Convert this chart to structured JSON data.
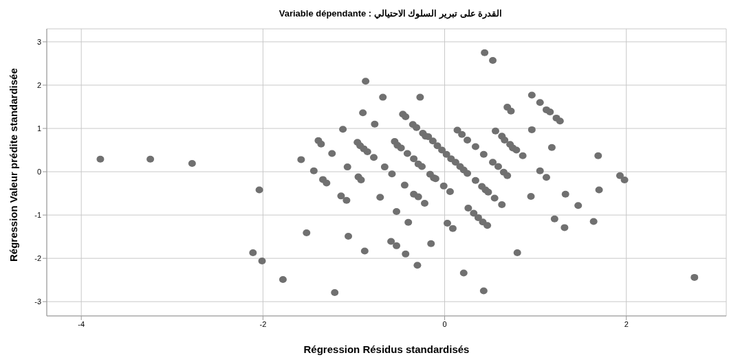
{
  "chart_data": {
    "type": "scatter",
    "title": "Variable dépendante : القدرة على تبرير السلوك الاحتيالي",
    "xlabel": "Régression Résidus standardisés",
    "ylabel": "Régression Valeur prédite standardisée",
    "series": [
      {
        "color": "#707070",
        "x": [
          -3.79,
          -3.24,
          -2.78,
          -2.04,
          -2.11,
          -2.01,
          -0.87,
          -0.68,
          -0.27,
          -0.9,
          -0.46,
          -0.43,
          -0.77,
          -0.35,
          -0.31,
          -1.12,
          -0.24,
          -0.21,
          -1.39,
          -1.36,
          -0.96,
          -0.93,
          -0.89,
          -0.85,
          -0.55,
          -0.52,
          -0.48,
          -1.24,
          -0.41,
          -0.78,
          -0.34,
          -0.29,
          -0.25,
          -1.58,
          -1.07,
          -0.66,
          -1.44,
          -0.58,
          -0.16,
          -0.12,
          -0.1,
          -1.34,
          -1.3,
          -0.95,
          -0.92,
          -0.44,
          -1.14,
          -1.08,
          -0.71,
          -0.34,
          -0.29,
          -0.22,
          -0.53,
          -0.4,
          -1.52,
          -1.06,
          -0.15,
          -0.59,
          -0.53,
          -0.88,
          -0.43,
          -0.3,
          -1.78,
          -1.21,
          0.44,
          0.53,
          0.96,
          1.05,
          1.12,
          1.16,
          1.23,
          1.27,
          0.69,
          0.73,
          0.96,
          1.18,
          0.14,
          0.19,
          0.25,
          0.34,
          0.43,
          0.56,
          0.63,
          0.66,
          0.72,
          0.75,
          0.79,
          0.86,
          -0.18,
          -0.13,
          -0.08,
          -0.03,
          0.02,
          0.07,
          0.12,
          0.17,
          0.21,
          0.25,
          0.34,
          0.41,
          0.45,
          0.48,
          0.55,
          0.63,
          0.53,
          0.59,
          0.65,
          0.69,
          -0.01,
          0.06,
          0.26,
          0.32,
          0.37,
          0.42,
          0.47,
          0.03,
          0.09,
          1.05,
          1.12,
          0.95,
          1.33,
          1.47,
          1.21,
          1.32,
          1.64,
          0.8,
          0.21,
          0.43,
          1.69,
          1.93,
          1.98,
          1.7,
          2.75
        ],
        "values": [
          0.29,
          0.29,
          0.19,
          -0.42,
          -1.87,
          -2.06,
          2.09,
          1.72,
          1.72,
          1.36,
          1.33,
          1.27,
          1.1,
          1.09,
          1.02,
          0.98,
          0.89,
          0.82,
          0.72,
          0.64,
          0.68,
          0.6,
          0.53,
          0.46,
          0.7,
          0.61,
          0.55,
          0.42,
          0.42,
          0.33,
          0.3,
          0.18,
          0.12,
          0.28,
          0.11,
          0.11,
          0.02,
          -0.05,
          -0.06,
          -0.14,
          -0.16,
          -0.18,
          -0.26,
          -0.12,
          -0.19,
          -0.31,
          -0.56,
          -0.66,
          -0.59,
          -0.52,
          -0.58,
          -0.73,
          -0.92,
          -1.17,
          -1.41,
          -1.49,
          -1.66,
          -1.61,
          -1.71,
          -1.83,
          -1.9,
          -2.16,
          -2.49,
          -2.79,
          2.75,
          2.57,
          1.77,
          1.6,
          1.43,
          1.38,
          1.24,
          1.17,
          1.49,
          1.4,
          0.97,
          0.56,
          0.96,
          0.86,
          0.73,
          0.58,
          0.4,
          0.94,
          0.82,
          0.73,
          0.63,
          0.55,
          0.5,
          0.37,
          0.81,
          0.71,
          0.6,
          0.5,
          0.4,
          0.3,
          0.22,
          0.12,
          0.04,
          -0.04,
          -0.2,
          -0.34,
          -0.42,
          -0.47,
          -0.61,
          -0.76,
          0.22,
          0.12,
          -0.01,
          -0.09,
          -0.33,
          -0.46,
          -0.84,
          -0.96,
          -1.06,
          -1.16,
          -1.24,
          -1.19,
          -1.31,
          0.02,
          -0.13,
          -0.57,
          -0.52,
          -0.78,
          -1.09,
          -1.29,
          -1.15,
          -1.87,
          -2.34,
          -2.75,
          0.37,
          -0.09,
          -0.19,
          -0.42,
          -2.44
        ]
      }
    ],
    "xlim": [
      -4.38,
      3.1
    ],
    "ylim": [
      -3.33,
      3.3
    ],
    "xticks": [
      -4,
      -2,
      0,
      2
    ],
    "yticks": [
      -3,
      -2,
      -1,
      0,
      1,
      2,
      3
    ],
    "grid": true,
    "marker": "circle"
  }
}
